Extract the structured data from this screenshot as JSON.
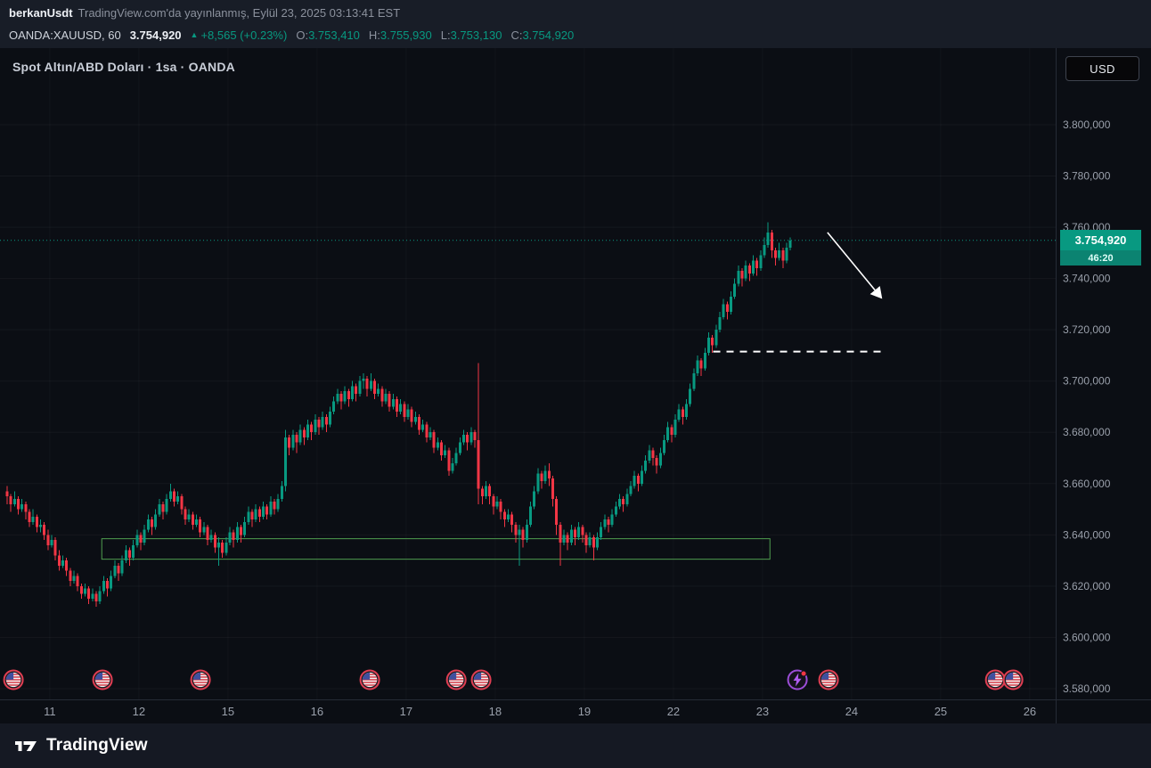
{
  "header": {
    "author": "berkanUsdt",
    "published": "TradingView.com'da yayınlanmış, Eylül 23, 2025 03:13:41 EST"
  },
  "symbol_bar": {
    "symbol": "OANDA:XAUUSD, 60",
    "last_price": "3.754,920",
    "change_icon": "▲",
    "change": "+8,565 (+0.23%)",
    "ohlc": [
      {
        "label": "O:",
        "value": "3.753,410"
      },
      {
        "label": "H:",
        "value": "3.755,930"
      },
      {
        "label": "L:",
        "value": "3.753,130"
      },
      {
        "label": "C:",
        "value": "3.754,920"
      }
    ]
  },
  "chart": {
    "legend": "Spot Altın/ABD Doları · 1sa · OANDA",
    "currency_button": "USD",
    "price_tag": {
      "label": "3.754,920",
      "countdown": "46:20"
    }
  },
  "footer": {
    "brand": "TradingView"
  },
  "chart_data": {
    "type": "candlestick",
    "title": "Spot Altın/ABD Doları · 1sa · OANDA",
    "interval": "60",
    "current_price": 3754.92,
    "price_axis": {
      "min": 3580,
      "max": 3800,
      "ticks": [
        {
          "v": 3800,
          "label": "3.800,000"
        },
        {
          "v": 3780,
          "label": "3.780,000"
        },
        {
          "v": 3760,
          "label": "3.760,000"
        },
        {
          "v": 3740,
          "label": "3.740,000"
        },
        {
          "v": 3720,
          "label": "3.720,000"
        },
        {
          "v": 3700,
          "label": "3.700,000"
        },
        {
          "v": 3680,
          "label": "3.680,000"
        },
        {
          "v": 3660,
          "label": "3.660,000"
        },
        {
          "v": 3640,
          "label": "3.640,000"
        },
        {
          "v": 3620,
          "label": "3.620,000"
        },
        {
          "v": 3600,
          "label": "3.600,000"
        },
        {
          "v": 3580,
          "label": "3.580,000"
        }
      ]
    },
    "time_axis": [
      {
        "label": "11",
        "i": 11.5
      },
      {
        "label": "12",
        "i": 35.5
      },
      {
        "label": "15",
        "i": 59.5
      },
      {
        "label": "16",
        "i": 83.5
      },
      {
        "label": "17",
        "i": 107.5
      },
      {
        "label": "18",
        "i": 131.5
      },
      {
        "label": "19",
        "i": 155.5
      },
      {
        "label": "22",
        "i": 179.5
      },
      {
        "label": "23",
        "i": 203.5
      },
      {
        "label": "24",
        "i": 227.5
      },
      {
        "label": "25",
        "i": 251.5
      },
      {
        "label": "26",
        "i": 275.5
      }
    ],
    "colors": {
      "up": "#089981",
      "down": "#f23645",
      "axis_text": "#9aa0ab",
      "price_line": "#089981"
    },
    "annotations": {
      "support_zone": {
        "i1": 25.5,
        "i2": 205.5,
        "price_top": 3638.5,
        "price_bottom": 3630.5,
        "color": "#4f9d4f"
      },
      "dashed_level": {
        "price": 3711.5,
        "i1": 190.2,
        "i2": 236,
        "color": "#ffffff"
      },
      "projection_arrow": {
        "from": {
          "i": 221,
          "price": 3758
        },
        "to": {
          "i": 235.5,
          "price": 3732.5
        },
        "color": "#ffffff"
      }
    },
    "events": [
      {
        "type": "us-flag",
        "i": 1.7
      },
      {
        "type": "us-flag",
        "i": 25.7
      },
      {
        "type": "us-flag",
        "i": 52.1
      },
      {
        "type": "us-flag",
        "i": 97.7
      },
      {
        "type": "us-flag",
        "i": 121.0
      },
      {
        "type": "us-flag",
        "i": 127.7
      },
      {
        "type": "flash",
        "i": 212.9
      },
      {
        "type": "us-flag",
        "i": 221.3
      },
      {
        "type": "us-flag",
        "i": 266.2
      },
      {
        "type": "us-flag",
        "i": 271.0
      }
    ],
    "candles": [
      [
        3657,
        3659,
        3652,
        3655
      ],
      [
        3655,
        3656,
        3649,
        3652
      ],
      [
        3652,
        3657,
        3651,
        3654
      ],
      [
        3654,
        3655,
        3648,
        3650
      ],
      [
        3650,
        3654,
        3649,
        3652
      ],
      [
        3652,
        3653,
        3646,
        3649
      ],
      [
        3649,
        3650,
        3643,
        3645
      ],
      [
        3645,
        3650,
        3644,
        3647
      ],
      [
        3647,
        3648,
        3641,
        3643
      ],
      [
        3643,
        3646,
        3641,
        3644
      ],
      [
        3644,
        3645,
        3638,
        3640
      ],
      [
        3640,
        3642,
        3634,
        3636
      ],
      [
        3636,
        3640,
        3635,
        3638
      ],
      [
        3638,
        3639,
        3630,
        3632
      ],
      [
        3632,
        3634,
        3626,
        3628
      ],
      [
        3628,
        3632,
        3627,
        3630
      ],
      [
        3630,
        3631,
        3624,
        3626
      ],
      [
        3626,
        3627,
        3620,
        3622
      ],
      [
        3622,
        3626,
        3621,
        3624
      ],
      [
        3624,
        3625,
        3618,
        3620
      ],
      [
        3620,
        3621,
        3615,
        3617
      ],
      [
        3617,
        3621,
        3616,
        3619
      ],
      [
        3619,
        3620,
        3613,
        3615
      ],
      [
        3615,
        3619,
        3614,
        3617
      ],
      [
        3617,
        3618,
        3612,
        3614
      ],
      [
        3614,
        3620,
        3613,
        3618
      ],
      [
        3618,
        3624,
        3617,
        3622
      ],
      [
        3622,
        3623,
        3616,
        3619
      ],
      [
        3619,
        3626,
        3618,
        3624
      ],
      [
        3624,
        3630,
        3623,
        3628
      ],
      [
        3628,
        3629,
        3622,
        3625
      ],
      [
        3625,
        3632,
        3624,
        3630
      ],
      [
        3630,
        3636,
        3629,
        3634
      ],
      [
        3634,
        3635,
        3628,
        3631
      ],
      [
        3631,
        3638,
        3630,
        3636
      ],
      [
        3636,
        3642,
        3635,
        3640
      ],
      [
        3640,
        3641,
        3634,
        3637
      ],
      [
        3637,
        3644,
        3636,
        3642
      ],
      [
        3642,
        3648,
        3641,
        3646
      ],
      [
        3646,
        3647,
        3640,
        3643
      ],
      [
        3643,
        3650,
        3642,
        3648
      ],
      [
        3648,
        3654,
        3647,
        3652
      ],
      [
        3652,
        3653,
        3646,
        3649
      ],
      [
        3649,
        3656,
        3648,
        3654
      ],
      [
        3654,
        3660,
        3653,
        3657
      ],
      [
        3657,
        3658,
        3651,
        3653
      ],
      [
        3653,
        3657,
        3652,
        3655
      ],
      [
        3655,
        3656,
        3648,
        3650
      ],
      [
        3650,
        3651,
        3644,
        3646
      ],
      [
        3646,
        3650,
        3645,
        3648
      ],
      [
        3648,
        3649,
        3642,
        3644
      ],
      [
        3644,
        3648,
        3643,
        3646
      ],
      [
        3646,
        3647,
        3639,
        3641
      ],
      [
        3641,
        3645,
        3640,
        3643
      ],
      [
        3643,
        3644,
        3636,
        3638
      ],
      [
        3638,
        3642,
        3637,
        3640
      ],
      [
        3640,
        3641,
        3633,
        3635
      ],
      [
        3635,
        3639,
        3628,
        3637
      ],
      [
        3637,
        3638,
        3631,
        3633
      ],
      [
        3633,
        3639,
        3632,
        3637
      ],
      [
        3637,
        3643,
        3636,
        3641
      ],
      [
        3641,
        3642,
        3635,
        3638
      ],
      [
        3638,
        3645,
        3637,
        3643
      ],
      [
        3643,
        3644,
        3637,
        3640
      ],
      [
        3640,
        3647,
        3639,
        3645
      ],
      [
        3645,
        3651,
        3644,
        3649
      ],
      [
        3649,
        3650,
        3643,
        3646
      ],
      [
        3646,
        3652,
        3645,
        3650
      ],
      [
        3650,
        3651,
        3645,
        3647
      ],
      [
        3647,
        3653,
        3646,
        3651
      ],
      [
        3651,
        3652,
        3646,
        3648
      ],
      [
        3648,
        3655,
        3647,
        3653
      ],
      [
        3653,
        3654,
        3648,
        3650
      ],
      [
        3650,
        3656,
        3649,
        3654
      ],
      [
        3654,
        3661,
        3653,
        3659
      ],
      [
        3659,
        3681,
        3657,
        3678
      ],
      [
        3678,
        3679,
        3671,
        3674
      ],
      [
        3674,
        3681,
        3673,
        3679
      ],
      [
        3679,
        3680,
        3672,
        3676
      ],
      [
        3676,
        3683,
        3675,
        3681
      ],
      [
        3681,
        3682,
        3675,
        3678
      ],
      [
        3678,
        3685,
        3677,
        3683
      ],
      [
        3683,
        3684,
        3677,
        3680
      ],
      [
        3680,
        3687,
        3679,
        3685
      ],
      [
        3685,
        3686,
        3679,
        3682
      ],
      [
        3682,
        3688,
        3681,
        3686
      ],
      [
        3686,
        3687,
        3680,
        3683
      ],
      [
        3683,
        3690,
        3682,
        3688
      ],
      [
        3688,
        3694,
        3687,
        3692
      ],
      [
        3692,
        3697,
        3691,
        3695
      ],
      [
        3695,
        3696,
        3689,
        3692
      ],
      [
        3692,
        3698,
        3691,
        3696
      ],
      [
        3696,
        3697,
        3690,
        3693
      ],
      [
        3693,
        3700,
        3692,
        3698
      ],
      [
        3698,
        3699,
        3692,
        3695
      ],
      [
        3695,
        3702,
        3694,
        3700
      ],
      [
        3700,
        3703,
        3697,
        3701
      ],
      [
        3701,
        3702,
        3694,
        3697
      ],
      [
        3697,
        3703,
        3696,
        3700
      ],
      [
        3700,
        3701,
        3693,
        3695
      ],
      [
        3695,
        3699,
        3694,
        3697
      ],
      [
        3697,
        3698,
        3690,
        3692
      ],
      [
        3692,
        3697,
        3691,
        3695
      ],
      [
        3695,
        3696,
        3688,
        3690
      ],
      [
        3690,
        3695,
        3689,
        3693
      ],
      [
        3693,
        3694,
        3686,
        3688
      ],
      [
        3688,
        3693,
        3687,
        3691
      ],
      [
        3691,
        3692,
        3684,
        3686
      ],
      [
        3686,
        3691,
        3685,
        3689
      ],
      [
        3689,
        3690,
        3682,
        3684
      ],
      [
        3684,
        3688,
        3683,
        3686
      ],
      [
        3686,
        3687,
        3679,
        3681
      ],
      [
        3681,
        3685,
        3680,
        3683
      ],
      [
        3683,
        3684,
        3676,
        3678
      ],
      [
        3678,
        3682,
        3677,
        3680
      ],
      [
        3680,
        3681,
        3672,
        3674
      ],
      [
        3674,
        3678,
        3673,
        3676
      ],
      [
        3676,
        3677,
        3669,
        3671
      ],
      [
        3671,
        3675,
        3670,
        3673
      ],
      [
        3673,
        3674,
        3663,
        3665
      ],
      [
        3665,
        3670,
        3664,
        3668
      ],
      [
        3668,
        3674,
        3667,
        3672
      ],
      [
        3672,
        3678,
        3671,
        3676
      ],
      [
        3676,
        3681,
        3675,
        3679
      ],
      [
        3679,
        3680,
        3673,
        3676
      ],
      [
        3676,
        3682,
        3675,
        3680
      ],
      [
        3680,
        3681,
        3674,
        3677
      ],
      [
        3677,
        3707,
        3652,
        3658
      ],
      [
        3658,
        3659,
        3652,
        3655
      ],
      [
        3655,
        3661,
        3654,
        3659
      ],
      [
        3659,
        3660,
        3652,
        3655
      ],
      [
        3655,
        3656,
        3648,
        3651
      ],
      [
        3651,
        3655,
        3650,
        3653
      ],
      [
        3653,
        3654,
        3646,
        3649
      ],
      [
        3649,
        3650,
        3643,
        3646
      ],
      [
        3646,
        3650,
        3645,
        3648
      ],
      [
        3648,
        3649,
        3641,
        3644
      ],
      [
        3644,
        3645,
        3637,
        3640
      ],
      [
        3640,
        3644,
        3628,
        3642
      ],
      [
        3642,
        3643,
        3635,
        3638
      ],
      [
        3638,
        3646,
        3637,
        3644
      ],
      [
        3644,
        3653,
        3643,
        3651
      ],
      [
        3651,
        3659,
        3650,
        3657
      ],
      [
        3657,
        3666,
        3656,
        3664
      ],
      [
        3664,
        3665,
        3658,
        3661
      ],
      [
        3661,
        3667,
        3660,
        3665
      ],
      [
        3665,
        3668,
        3659,
        3662
      ],
      [
        3662,
        3663,
        3651,
        3654
      ],
      [
        3654,
        3655,
        3640,
        3644
      ],
      [
        3644,
        3645,
        3628,
        3637
      ],
      [
        3637,
        3642,
        3636,
        3640
      ],
      [
        3640,
        3641,
        3634,
        3637
      ],
      [
        3637,
        3644,
        3636,
        3642
      ],
      [
        3642,
        3643,
        3636,
        3639
      ],
      [
        3639,
        3645,
        3638,
        3643
      ],
      [
        3643,
        3644,
        3637,
        3640
      ],
      [
        3640,
        3641,
        3633,
        3636
      ],
      [
        3636,
        3641,
        3635,
        3639
      ],
      [
        3639,
        3640,
        3630,
        3635
      ],
      [
        3635,
        3641,
        3634,
        3639
      ],
      [
        3639,
        3645,
        3638,
        3643
      ],
      [
        3643,
        3648,
        3642,
        3646
      ],
      [
        3646,
        3647,
        3641,
        3644
      ],
      [
        3644,
        3650,
        3643,
        3648
      ],
      [
        3648,
        3653,
        3647,
        3651
      ],
      [
        3651,
        3656,
        3650,
        3654
      ],
      [
        3654,
        3655,
        3649,
        3652
      ],
      [
        3652,
        3658,
        3651,
        3656
      ],
      [
        3656,
        3661,
        3655,
        3659
      ],
      [
        3659,
        3665,
        3658,
        3663
      ],
      [
        3663,
        3664,
        3657,
        3660
      ],
      [
        3660,
        3667,
        3659,
        3665
      ],
      [
        3665,
        3671,
        3664,
        3669
      ],
      [
        3669,
        3675,
        3668,
        3673
      ],
      [
        3673,
        3674,
        3667,
        3670
      ],
      [
        3670,
        3671,
        3664,
        3667
      ],
      [
        3667,
        3674,
        3666,
        3672
      ],
      [
        3672,
        3679,
        3671,
        3677
      ],
      [
        3677,
        3684,
        3676,
        3682
      ],
      [
        3682,
        3683,
        3676,
        3679
      ],
      [
        3679,
        3687,
        3678,
        3685
      ],
      [
        3685,
        3691,
        3684,
        3689
      ],
      [
        3689,
        3690,
        3683,
        3686
      ],
      [
        3686,
        3693,
        3685,
        3691
      ],
      [
        3691,
        3699,
        3690,
        3697
      ],
      [
        3697,
        3705,
        3696,
        3703
      ],
      [
        3703,
        3710,
        3702,
        3708
      ],
      [
        3708,
        3709,
        3702,
        3705
      ],
      [
        3705,
        3713,
        3704,
        3711
      ],
      [
        3711,
        3719,
        3710,
        3717
      ],
      [
        3717,
        3718,
        3711,
        3714
      ],
      [
        3714,
        3722,
        3713,
        3720
      ],
      [
        3720,
        3727,
        3719,
        3725
      ],
      [
        3725,
        3732,
        3724,
        3730
      ],
      [
        3730,
        3731,
        3724,
        3727
      ],
      [
        3727,
        3735,
        3726,
        3733
      ],
      [
        3733,
        3740,
        3732,
        3738
      ],
      [
        3738,
        3745,
        3737,
        3743
      ],
      [
        3743,
        3744,
        3737,
        3740
      ],
      [
        3740,
        3747,
        3739,
        3745
      ],
      [
        3745,
        3746,
        3739,
        3742
      ],
      [
        3742,
        3749,
        3741,
        3747
      ],
      [
        3747,
        3748,
        3741,
        3744
      ],
      [
        3744,
        3751,
        3743,
        3749
      ],
      [
        3749,
        3756,
        3748,
        3753
      ],
      [
        3753,
        3762,
        3752,
        3758
      ],
      [
        3758,
        3759,
        3748,
        3751
      ],
      [
        3751,
        3752,
        3745,
        3748
      ],
      [
        3748,
        3754,
        3747,
        3751
      ],
      [
        3751,
        3752,
        3744,
        3747
      ],
      [
        3747,
        3754,
        3746,
        3752
      ],
      [
        3752,
        3756,
        3751,
        3754.9
      ]
    ]
  }
}
